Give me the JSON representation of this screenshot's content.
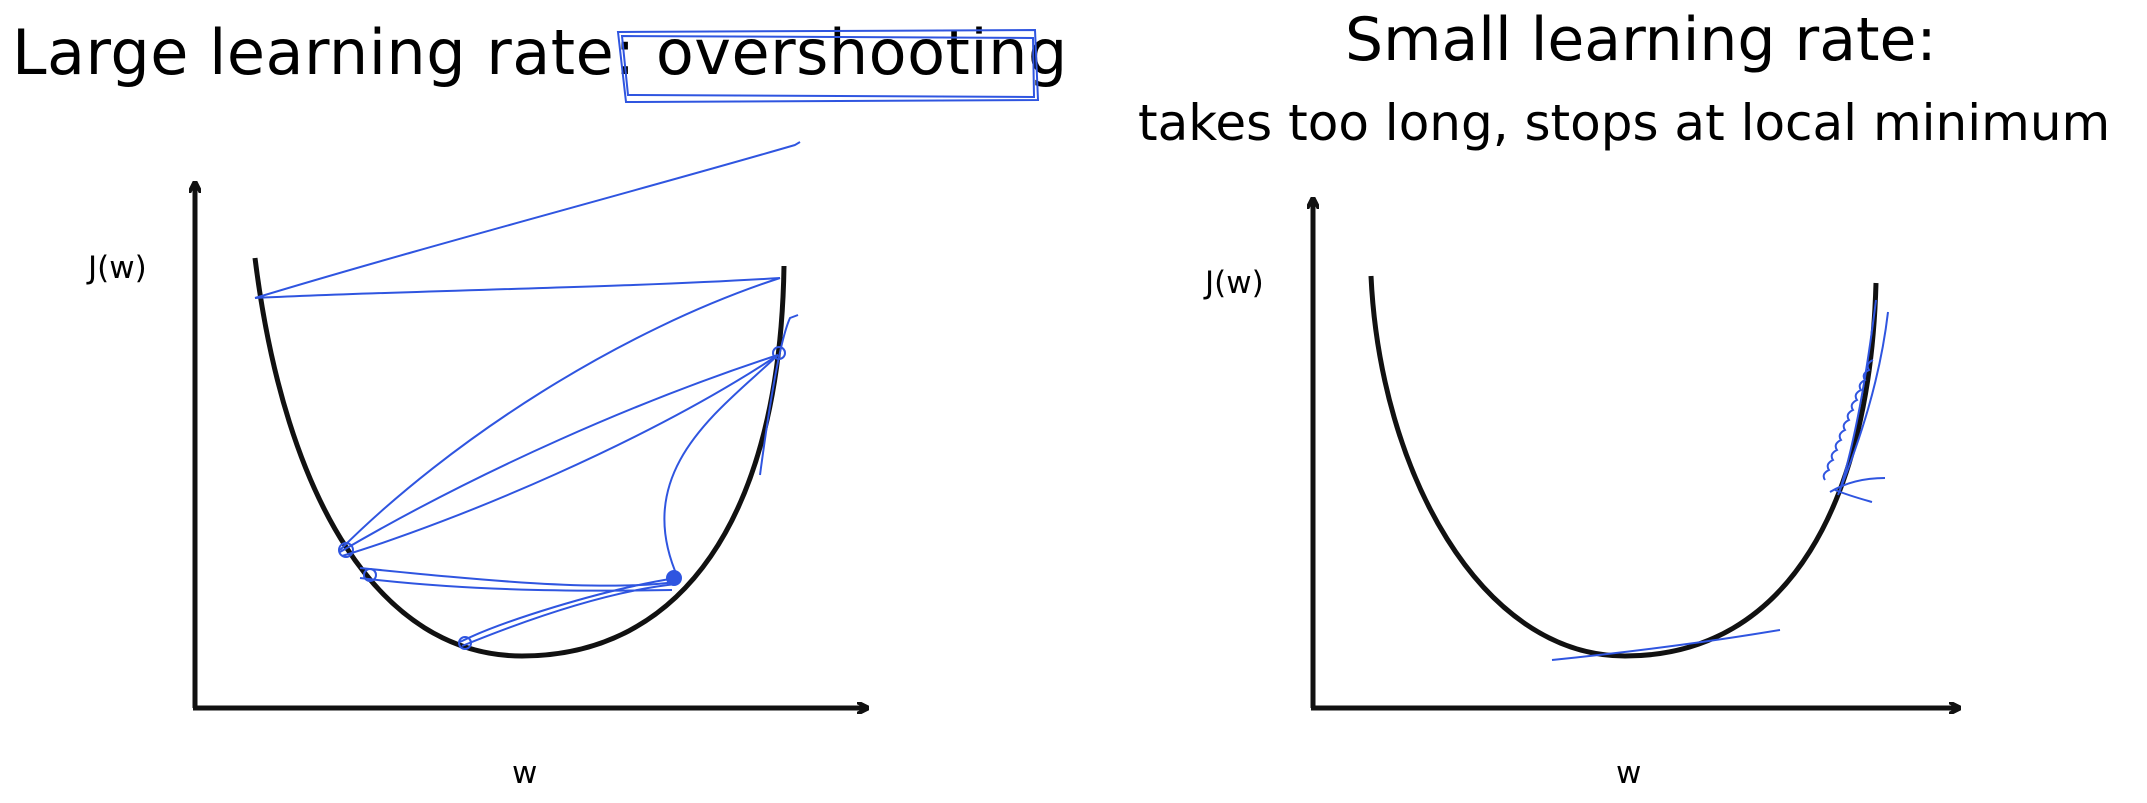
{
  "left_panel": {
    "title_prefix": "Large learning rate: ",
    "title_highlight": "overshooting",
    "ylabel": "J(w)",
    "xlabel": "w"
  },
  "right_panel": {
    "title": "Small learning rate:",
    "subtitle": "takes too long, stops at local minimum",
    "ylabel": "J(w)",
    "xlabel": "w"
  },
  "colors": {
    "curve": "#111111",
    "annotation": "#2f55e0",
    "axis": "#111111"
  }
}
